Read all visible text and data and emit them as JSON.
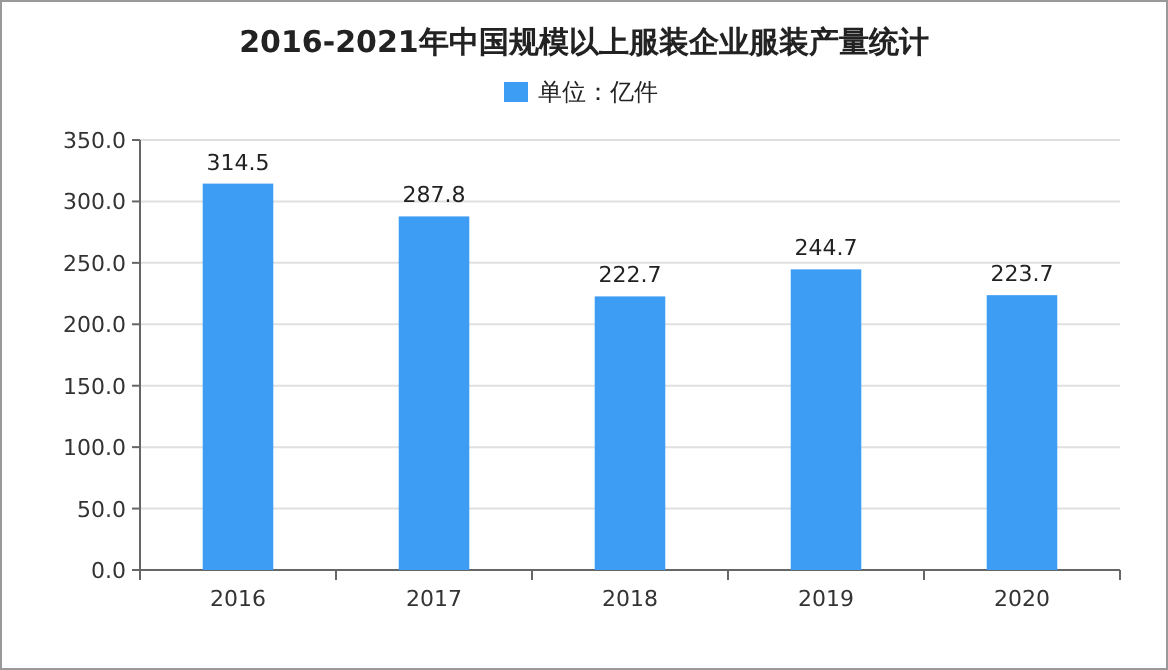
{
  "chart_data": {
    "type": "bar",
    "title": "2016-2021年中国规模以上服装企业服装产量统计",
    "categories": [
      "2016",
      "2017",
      "2018",
      "2019",
      "2020"
    ],
    "series": [
      {
        "name": "单位：亿件",
        "color": "#3d9cf3",
        "values": [
          314.5,
          287.8,
          222.7,
          244.7,
          223.7
        ]
      }
    ],
    "ylim": [
      0,
      350
    ],
    "yticks": [
      {
        "value": 0,
        "label": "0.0"
      },
      {
        "value": 50,
        "label": "50.0"
      },
      {
        "value": 100,
        "label": "100.0"
      },
      {
        "value": 150,
        "label": "150.0"
      },
      {
        "value": 200,
        "label": "200.0"
      },
      {
        "value": 250,
        "label": "250.0"
      },
      {
        "value": 300,
        "label": "300.0"
      },
      {
        "value": 350,
        "label": "350.0"
      }
    ],
    "grid": "y",
    "legend": "top",
    "data_labels": true
  }
}
